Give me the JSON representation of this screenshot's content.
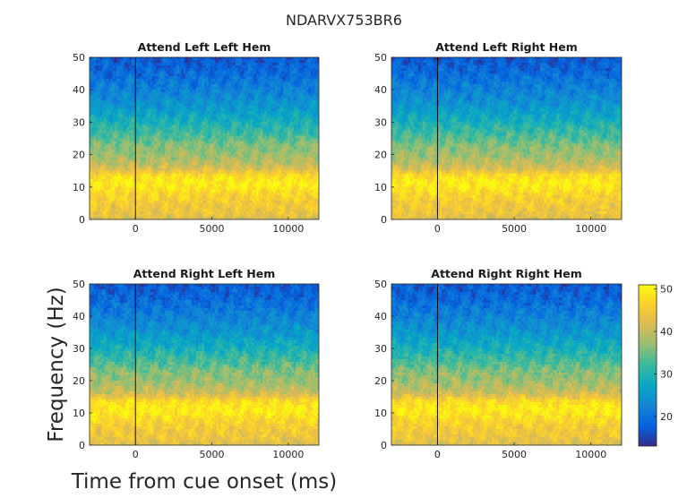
{
  "figure": {
    "title": "NDARVX753BR6",
    "ylabel": "Frequency (Hz)",
    "xlabel": "Time from cue onset (ms)"
  },
  "chart_data": {
    "type": "heatmap",
    "title": "NDARVX753BR6",
    "xlabel": "Time from cue onset (ms)",
    "ylabel": "Frequency (Hz)",
    "xlim": [
      -3000,
      12000
    ],
    "ylim": [
      0,
      50
    ],
    "xticks": [
      0,
      5000,
      10000
    ],
    "yticks": [
      0,
      10,
      20,
      30,
      40,
      50
    ],
    "xtick_labels": [
      "0",
      "5000",
      "10000"
    ],
    "ytick_labels": [
      "0",
      "10",
      "20",
      "30",
      "40",
      "50"
    ],
    "cue_line_x": 0,
    "colormap": "parula",
    "colorbar": {
      "clim": [
        13,
        51
      ],
      "ticks": [
        20,
        30,
        40,
        50
      ],
      "tick_labels": [
        "20",
        "30",
        "40",
        "50"
      ]
    },
    "freq_profile": {
      "frequency_hz": [
        0,
        2,
        5,
        8,
        10,
        11,
        12,
        14,
        15,
        17,
        20,
        23,
        25,
        28,
        30,
        35,
        40,
        45,
        50
      ],
      "power": [
        42,
        44,
        45,
        47,
        49,
        49.5,
        49,
        47,
        43,
        40,
        37.5,
        36,
        33.5,
        31,
        29,
        25,
        22,
        19,
        17
      ]
    },
    "panels": [
      {
        "title": "Attend Left Left Hem"
      },
      {
        "title": "Attend Left Right Hem"
      },
      {
        "title": "Attend Right Left Hem"
      },
      {
        "title": "Attend Right Right Hem"
      }
    ]
  },
  "colors": {
    "cue_line": "#000000",
    "axes": "#262626",
    "background": "#ffffff"
  }
}
